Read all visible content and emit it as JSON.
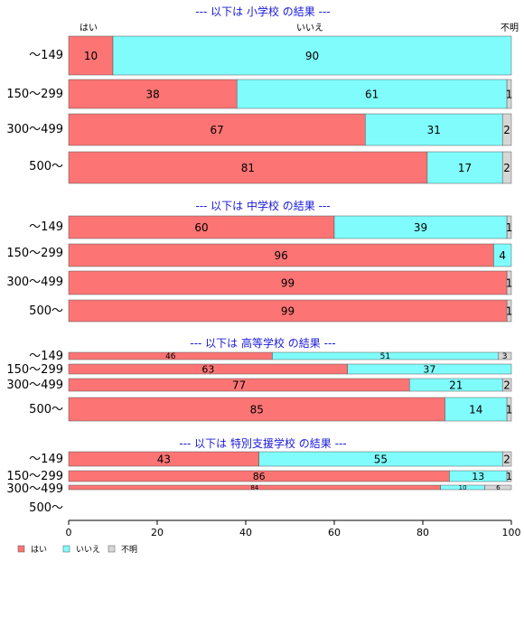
{
  "colors": {
    "yes": "#fc7474",
    "no": "#80fcfc",
    "unknown": "#d6d6d6",
    "title": "#1a1adb"
  },
  "top_labels": [
    "はい",
    "いいえ",
    "不明"
  ],
  "legend": [
    "はい",
    "いいえ",
    "不明"
  ],
  "chart_data": {
    "type": "bar",
    "orientation": "horizontal",
    "stacked": true,
    "xlim": [
      0,
      100
    ],
    "xticks": [
      0,
      20,
      40,
      60,
      80,
      100
    ],
    "series": [
      {
        "name": "はい"
      },
      {
        "name": "いいえ"
      },
      {
        "name": "不明"
      }
    ],
    "groups": [
      {
        "title": "--- 以下は 小学校 の結果 ---",
        "rows": [
          {
            "label": "〜149",
            "values": [
              10,
              90,
              0
            ]
          },
          {
            "label": "150〜299",
            "values": [
              38,
              61,
              1
            ]
          },
          {
            "label": "300〜499",
            "values": [
              67,
              31,
              2
            ]
          },
          {
            "label": "500〜",
            "values": [
              81,
              17,
              2
            ]
          }
        ]
      },
      {
        "title": "--- 以下は 中学校 の結果 ---",
        "rows": [
          {
            "label": "〜149",
            "values": [
              60,
              39,
              1
            ]
          },
          {
            "label": "150〜299",
            "values": [
              96,
              4,
              0
            ]
          },
          {
            "label": "300〜499",
            "values": [
              99,
              0,
              1
            ]
          },
          {
            "label": "500〜",
            "values": [
              99,
              0,
              1
            ]
          }
        ]
      },
      {
        "title": "--- 以下は 高等学校 の結果 ---",
        "rows": [
          {
            "label": "〜149",
            "values": [
              46,
              51,
              3
            ]
          },
          {
            "label": "150〜299",
            "values": [
              63,
              37,
              0
            ]
          },
          {
            "label": "300〜499",
            "values": [
              77,
              21,
              2
            ]
          },
          {
            "label": "500〜",
            "values": [
              85,
              14,
              1
            ]
          }
        ]
      },
      {
        "title": "--- 以下は 特別支援学校 の結果 ---",
        "rows": [
          {
            "label": "〜149",
            "values": [
              43,
              55,
              2
            ]
          },
          {
            "label": "150〜299",
            "values": [
              86,
              13,
              1
            ]
          },
          {
            "label": "300〜499",
            "values": [
              84,
              10,
              6
            ]
          },
          {
            "label": "500〜",
            "values": [
              0,
              0,
              0
            ]
          }
        ]
      }
    ]
  }
}
